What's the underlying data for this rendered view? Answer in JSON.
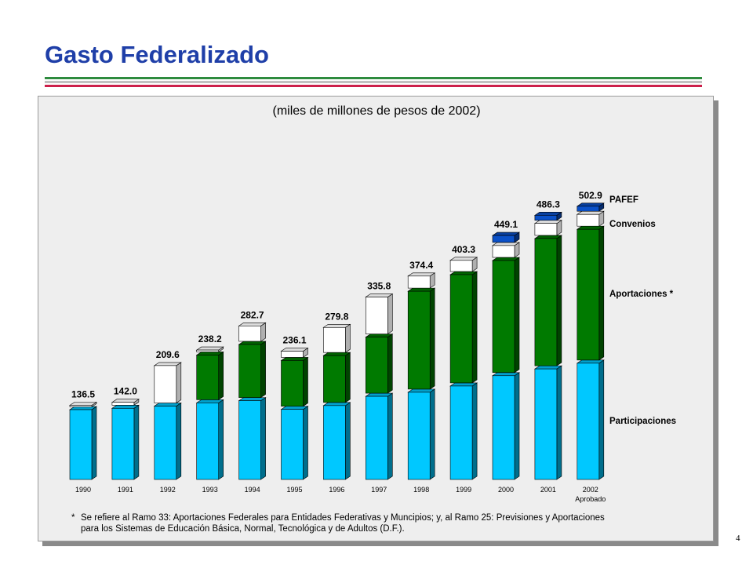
{
  "header": {
    "title": "Gasto Federalizado",
    "rule_colors": [
      "#2e8b3e",
      "#c0c0c0",
      "#cc1f4a"
    ]
  },
  "page_number": "4",
  "footnote": {
    "marker": "*",
    "text": "Se refiere al Ramo 33: Aportaciones Federales para Entidades Federativas y Muncipios; y, al Ramo 25: Previsiones y Aportaciones para los Sistemas de Educación Básica, Normal, Tecnológica y de Adultos (D.F.)."
  },
  "chart_data": {
    "type": "bar",
    "stacked": true,
    "subtitle": "(miles de millones de pesos de 2002)",
    "categories": [
      "1990",
      "1991",
      "1992",
      "1993",
      "1994",
      "1995",
      "1996",
      "1997",
      "1998",
      "1999",
      "2000",
      "2001",
      "2002"
    ],
    "category_sublabels": [
      "",
      "",
      "",
      "",
      "",
      "",
      "",
      "",
      "",
      "",
      "",
      "",
      "Aprobado"
    ],
    "totals": [
      "136.5",
      "142.0",
      "209.6",
      "238.2",
      "282.7",
      "236.1",
      "279.8",
      "335.8",
      "374.4",
      "403.3",
      "449.1",
      "486.3",
      "502.9"
    ],
    "series": [
      {
        "name": "Participaciones",
        "color": "#00c8ff",
        "values": [
          128.5,
          131.0,
          135.0,
          141.0,
          145.0,
          129.0,
          136.0,
          153.0,
          160.5,
          172.0,
          191.0,
          203.5,
          214.0
        ]
      },
      {
        "name": "Aportaciones  *",
        "color": "#007a00",
        "values": [
          0,
          0,
          0,
          88.0,
          103.5,
          90.0,
          92.0,
          109.0,
          186.0,
          205.0,
          212.0,
          240.0,
          246.5
        ]
      },
      {
        "name": "Convenios",
        "color": "#ffffff",
        "values": [
          8.0,
          11.0,
          74.6,
          9.2,
          34.2,
          17.1,
          51.8,
          73.8,
          27.9,
          26.3,
          27.6,
          27.8,
          27.4
        ]
      },
      {
        "name": "PAFEF",
        "color": "#0a50c8",
        "values": [
          0,
          0,
          0,
          0,
          0,
          0,
          0,
          0,
          0,
          0,
          18.5,
          15.0,
          15.0
        ]
      }
    ],
    "legend_position": "right",
    "legend_order": [
      "PAFEF",
      "Convenios",
      "Aportaciones  *",
      "Participaciones"
    ],
    "ylim": [
      0,
      520
    ],
    "grid": false
  }
}
